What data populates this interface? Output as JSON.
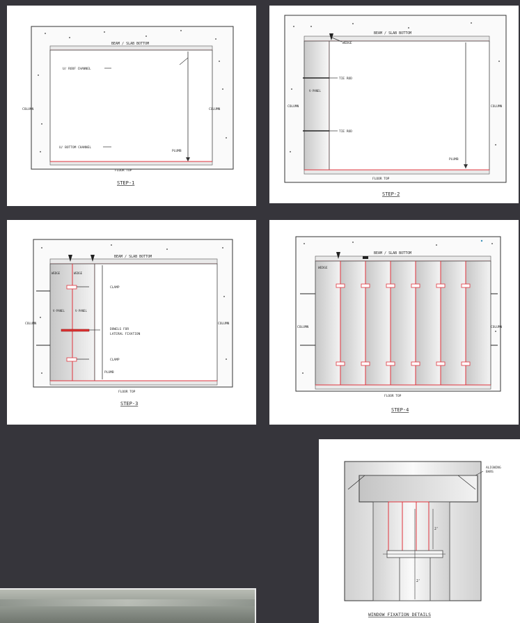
{
  "colors": {
    "background": "#36353b",
    "panel": "#ffffff",
    "ink": "#2a2a2a",
    "accent_line": "#e0333c"
  },
  "step1": {
    "beam": "BEAM / SLAB BOTTOM",
    "roof_channel": "U/ ROOF CHANNEL",
    "bottom_channel": "U/ BOTTOM CHANNEL",
    "column_left": "COLUMN",
    "column_right": "COLUMN",
    "plumb": "PLUMB",
    "floor": "FLOOR TOP",
    "caption": "STEP-1"
  },
  "step2": {
    "beam": "BEAM / SLAB BOTTOM",
    "wedge": "WEDGE",
    "tie_rod_1": "TIE ROD",
    "tie_rod_2": "TIE ROD",
    "panel": "V-PANEL",
    "column_left": "COLUMN",
    "column_right": "COLUMN",
    "plumb": "PLUMB",
    "floor": "FLOOR TOP",
    "caption": "STEP-2"
  },
  "step3": {
    "beam": "BEAM / SLAB BOTTOM",
    "wedge_1": "WEDGE",
    "wedge_2": "WEDGE",
    "clamp_1": "CLAMP",
    "clamp_2": "CLAMP",
    "panel_1": "V-PANEL",
    "panel_2": "V-PANEL",
    "dowel_line1": "DOWELS FOR",
    "dowel_line2": "LATERAL FIXATION",
    "column_left": "COLUMN",
    "column_right": "COLUMN",
    "plumb": "PLUMB",
    "floor": "FLOOR TOP",
    "caption": "STEP-3"
  },
  "step4": {
    "beam": "BEAM / SLAB BOTTOM",
    "wedge": "WEDGE",
    "column_left": "COLUMN",
    "column_right": "COLUMN",
    "floor": "FLOOR TOP",
    "caption": "STEP-4"
  },
  "window": {
    "bars_line1": "ALIGNING",
    "bars_line2": "BARS",
    "dim_1": "2'",
    "dim_2": "2'",
    "caption": "WINDOW FIXATION DETAILS"
  }
}
